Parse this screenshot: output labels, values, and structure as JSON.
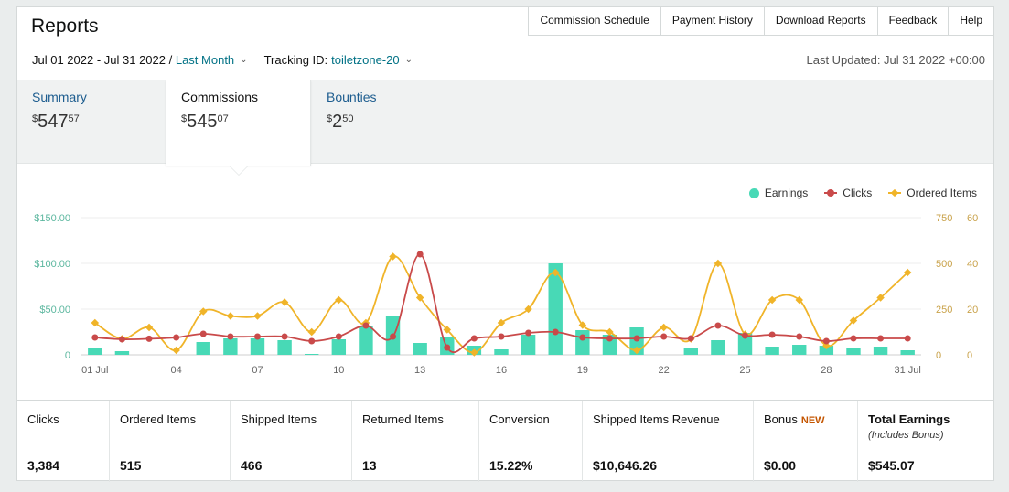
{
  "header": {
    "title": "Reports"
  },
  "topnav": [
    "Commission Schedule",
    "Payment History",
    "Download Reports",
    "Feedback",
    "Help"
  ],
  "filters": {
    "date_range": "Jul 01 2022 - Jul 31 2022",
    "separator": " / ",
    "period": "Last Month",
    "tracking_label": "Tracking ID:",
    "tracking_id": "toiletzone-20",
    "last_updated": "Last Updated: Jul 31 2022 +00:00"
  },
  "tabs": [
    {
      "label": "Summary",
      "currency": "$",
      "whole": "547",
      "cents": "57",
      "active": false
    },
    {
      "label": "Commissions",
      "currency": "$",
      "whole": "545",
      "cents": "07",
      "active": true
    },
    {
      "label": "Bounties",
      "currency": "$",
      "whole": "2",
      "cents": "50",
      "active": false
    }
  ],
  "legend": {
    "earnings": "Earnings",
    "clicks": "Clicks",
    "ordered": "Ordered Items"
  },
  "colors": {
    "earnings": "#48d9b6",
    "clicks": "#c94a4a",
    "ordered": "#f0b429",
    "link": "#007185",
    "new": "#c45500"
  },
  "chart_data": {
    "type": "bar",
    "title": "",
    "x_labels": [
      "01 Jul",
      "04",
      "07",
      "10",
      "13",
      "16",
      "19",
      "22",
      "25",
      "28",
      "31 Jul"
    ],
    "x": [
      1,
      2,
      3,
      4,
      5,
      6,
      7,
      8,
      9,
      10,
      11,
      12,
      13,
      14,
      15,
      16,
      17,
      18,
      19,
      20,
      21,
      22,
      23,
      24,
      25,
      26,
      27,
      28,
      29,
      30,
      31
    ],
    "y_left_ticks": [
      "$150.00",
      "$100.00",
      "$50.00",
      "0"
    ],
    "y_right_clicks_ticks": [
      "750",
      "500",
      "250",
      "0"
    ],
    "y_right_items_ticks": [
      "60",
      "40",
      "20",
      "0"
    ],
    "ylim_earnings": [
      0,
      150
    ],
    "ylim_clicks": [
      0,
      750
    ],
    "ylim_items": [
      0,
      60
    ],
    "legend_position": "top-right",
    "grid": true,
    "series": [
      {
        "name": "Earnings",
        "type": "bar",
        "axis": "left",
        "values": [
          7,
          4,
          0,
          0,
          14,
          18,
          18,
          16,
          1,
          17,
          32,
          43,
          13,
          20,
          10,
          6,
          22,
          100,
          27,
          22,
          30,
          0,
          7,
          16,
          24,
          9,
          11,
          10,
          7,
          9,
          5
        ]
      },
      {
        "name": "Clicks",
        "type": "line",
        "axis": "right-clicks",
        "values": [
          95,
          85,
          88,
          95,
          115,
          100,
          100,
          100,
          75,
          100,
          160,
          100,
          550,
          40,
          90,
          100,
          120,
          125,
          95,
          90,
          90,
          100,
          90,
          160,
          105,
          110,
          100,
          75,
          90,
          90,
          90
        ]
      },
      {
        "name": "Ordered Items",
        "type": "line",
        "axis": "right-items",
        "values": [
          14,
          7,
          12,
          2,
          19,
          17,
          17,
          23,
          10,
          24,
          14,
          43,
          25,
          11,
          1,
          14,
          20,
          36,
          13,
          10,
          2,
          12,
          7,
          40,
          9,
          24,
          24,
          4,
          15,
          25,
          36
        ]
      }
    ]
  },
  "metrics": [
    {
      "label": "Clicks",
      "value": "3,384"
    },
    {
      "label": "Ordered Items",
      "value": "515"
    },
    {
      "label": "Shipped Items",
      "value": "466"
    },
    {
      "label": "Returned Items",
      "value": "13"
    },
    {
      "label": "Conversion",
      "value": "15.22%"
    },
    {
      "label": "Shipped Items Revenue",
      "value": "$10,646.26"
    },
    {
      "label": "Bonus",
      "badge": "NEW",
      "value": "$0.00"
    },
    {
      "label": "Total Earnings",
      "sub": "(Includes Bonus)",
      "value": "$545.07"
    }
  ]
}
